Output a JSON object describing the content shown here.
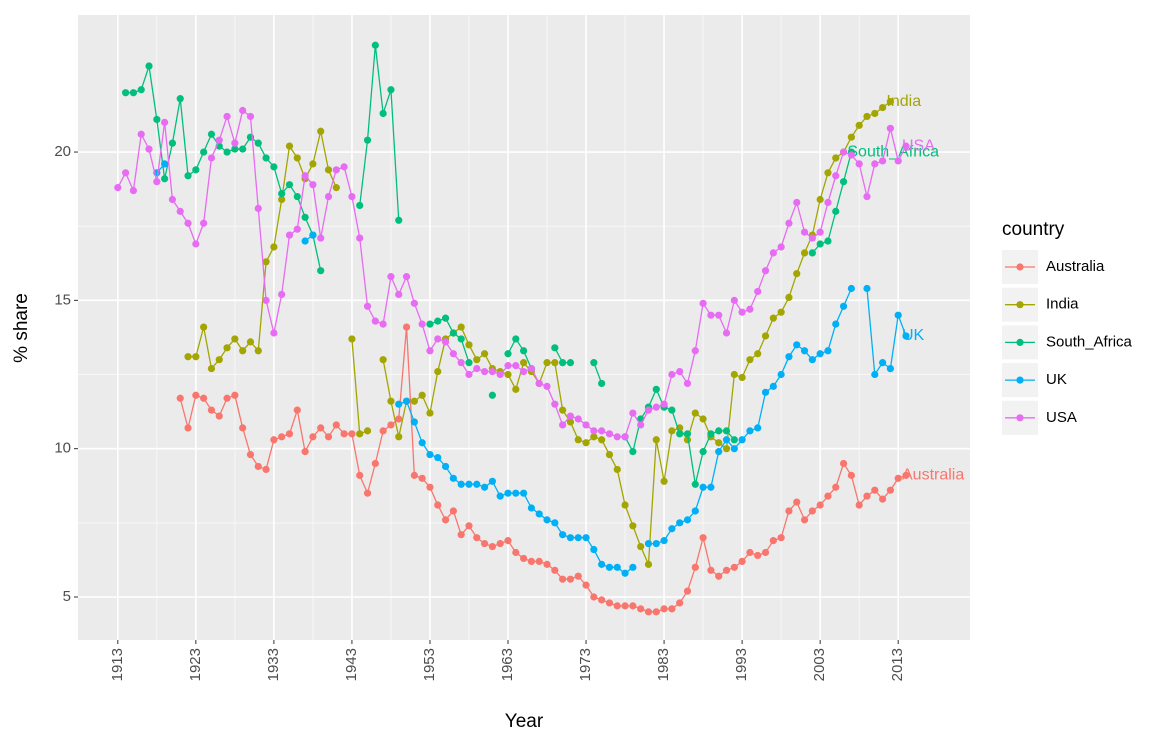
{
  "chart_data": {
    "type": "line",
    "x_label": "Year",
    "y_label": "% share",
    "legend_title": "country",
    "x": [
      1913,
      1914,
      1915,
      1916,
      1917,
      1918,
      1919,
      1920,
      1921,
      1922,
      1923,
      1924,
      1925,
      1926,
      1927,
      1928,
      1929,
      1930,
      1931,
      1932,
      1933,
      1934,
      1935,
      1936,
      1937,
      1938,
      1939,
      1940,
      1941,
      1942,
      1943,
      1944,
      1945,
      1946,
      1947,
      1948,
      1949,
      1950,
      1951,
      1952,
      1953,
      1954,
      1955,
      1956,
      1957,
      1958,
      1959,
      1960,
      1961,
      1962,
      1963,
      1964,
      1965,
      1966,
      1967,
      1968,
      1969,
      1970,
      1971,
      1972,
      1973,
      1974,
      1975,
      1976,
      1977,
      1978,
      1979,
      1980,
      1981,
      1982,
      1983,
      1984,
      1985,
      1986,
      1987,
      1988,
      1989,
      1990,
      1991,
      1992,
      1993,
      1994,
      1995,
      1996,
      1997,
      1998,
      1999,
      2000,
      2001,
      2002,
      2003,
      2004,
      2005,
      2006,
      2007,
      2008,
      2009,
      2010,
      2011,
      2012,
      2013,
      2014
    ],
    "xlim": [
      1907.9,
      2022.2
    ],
    "xticks": [
      1913,
      1923,
      1933,
      1943,
      1953,
      1963,
      1973,
      1983,
      1993,
      2003,
      2013
    ],
    "ylim": [
      3.55,
      24.62
    ],
    "yticks": [
      5,
      10,
      15,
      20
    ],
    "grid": true,
    "legend": "right",
    "series": [
      {
        "name": "Australia",
        "color": "#F8766D",
        "values": [
          null,
          null,
          null,
          null,
          null,
          null,
          null,
          null,
          11.7,
          10.7,
          11.8,
          11.7,
          11.3,
          11.1,
          11.7,
          11.8,
          10.7,
          9.8,
          9.4,
          9.3,
          10.3,
          10.4,
          10.5,
          11.3,
          9.9,
          10.4,
          10.7,
          10.4,
          10.8,
          10.5,
          10.5,
          9.1,
          8.5,
          9.5,
          10.6,
          10.8,
          11.0,
          14.1,
          9.1,
          9.0,
          8.7,
          8.1,
          7.6,
          7.9,
          7.1,
          7.4,
          7.0,
          6.8,
          6.7,
          6.8,
          6.9,
          6.5,
          6.3,
          6.2,
          6.2,
          6.1,
          5.9,
          5.6,
          5.6,
          5.7,
          5.4,
          5.0,
          4.9,
          4.8,
          4.7,
          4.7,
          4.7,
          4.6,
          4.5,
          4.5,
          4.6,
          4.6,
          4.8,
          5.2,
          6.0,
          7.0,
          5.9,
          5.7,
          5.9,
          6.0,
          6.2,
          6.5,
          6.4,
          6.5,
          6.9,
          7.0,
          7.9,
          8.2,
          7.6,
          7.9,
          8.1,
          8.4,
          8.7,
          9.5,
          9.1,
          8.1,
          8.4,
          8.6,
          8.3,
          8.6,
          9.0,
          9.1
        ]
      },
      {
        "name": "India",
        "color": "#A3A500",
        "values": [
          null,
          null,
          null,
          null,
          null,
          null,
          null,
          null,
          null,
          13.1,
          13.1,
          14.1,
          12.7,
          13.0,
          13.4,
          13.7,
          13.3,
          13.6,
          13.3,
          16.3,
          16.8,
          18.4,
          20.2,
          19.8,
          19.1,
          19.6,
          20.7,
          19.4,
          18.8,
          null,
          13.7,
          10.5,
          10.6,
          null,
          13.0,
          11.6,
          10.4,
          11.6,
          11.6,
          11.8,
          11.2,
          12.6,
          13.7,
          13.9,
          14.1,
          13.5,
          13.0,
          13.2,
          12.7,
          12.6,
          12.5,
          12.0,
          12.9,
          12.6,
          12.2,
          12.9,
          12.9,
          11.3,
          10.9,
          10.3,
          10.2,
          10.4,
          10.3,
          9.8,
          9.3,
          8.1,
          7.4,
          6.7,
          6.1,
          10.3,
          8.9,
          10.6,
          10.7,
          10.3,
          11.2,
          11.0,
          10.4,
          10.2,
          10.0,
          12.5,
          12.4,
          13.0,
          13.2,
          13.8,
          14.4,
          14.6,
          15.1,
          15.9,
          16.6,
          17.2,
          18.4,
          19.3,
          19.8,
          20.0,
          20.5,
          20.9,
          21.2,
          21.3,
          21.5,
          21.7,
          null,
          null
        ]
      },
      {
        "name": "South_Africa",
        "color": "#00BF7D",
        "values": [
          null,
          22.0,
          22.0,
          22.1,
          22.9,
          21.1,
          19.1,
          20.3,
          21.8,
          19.2,
          19.4,
          20.0,
          20.6,
          20.2,
          20.0,
          20.1,
          20.1,
          20.5,
          20.3,
          19.8,
          19.5,
          18.6,
          18.9,
          18.5,
          17.8,
          17.2,
          16.0,
          null,
          null,
          null,
          null,
          18.2,
          20.4,
          23.6,
          21.3,
          22.1,
          17.7,
          null,
          null,
          null,
          14.2,
          14.3,
          14.4,
          13.9,
          13.7,
          12.9,
          null,
          null,
          11.8,
          null,
          13.2,
          13.7,
          13.3,
          12.7,
          null,
          null,
          13.4,
          12.9,
          12.9,
          null,
          null,
          12.9,
          12.2,
          null,
          null,
          10.4,
          9.9,
          11.0,
          11.4,
          12.0,
          11.4,
          11.3,
          10.5,
          10.5,
          8.8,
          9.9,
          10.5,
          10.6,
          10.6,
          10.3,
          null,
          null,
          null,
          null,
          null,
          null,
          null,
          null,
          null,
          16.6,
          16.9,
          17.0,
          18.0,
          19.0,
          20.0,
          null,
          null,
          null,
          null,
          null,
          null,
          null
        ]
      },
      {
        "name": "UK",
        "color": "#00B0F6",
        "values": [
          null,
          null,
          null,
          null,
          null,
          19.3,
          19.6,
          null,
          null,
          null,
          null,
          null,
          null,
          null,
          null,
          null,
          null,
          null,
          null,
          null,
          null,
          null,
          null,
          null,
          17.0,
          17.2,
          null,
          null,
          null,
          null,
          null,
          null,
          null,
          null,
          null,
          null,
          11.5,
          11.6,
          10.9,
          10.2,
          9.8,
          9.7,
          9.4,
          9.0,
          8.8,
          8.8,
          8.8,
          8.7,
          8.9,
          8.4,
          8.5,
          8.5,
          8.5,
          8.0,
          7.8,
          7.6,
          7.5,
          7.1,
          7.0,
          7.0,
          7.0,
          6.6,
          6.1,
          6.0,
          6.0,
          5.8,
          6.0,
          null,
          6.8,
          6.8,
          6.9,
          7.3,
          7.5,
          7.6,
          7.9,
          8.7,
          8.7,
          9.9,
          10.3,
          10.0,
          10.3,
          10.6,
          10.7,
          11.9,
          12.1,
          12.5,
          13.1,
          13.5,
          13.3,
          13.0,
          13.2,
          13.3,
          14.2,
          14.8,
          15.4,
          null,
          15.4,
          12.5,
          12.9,
          12.7,
          14.5,
          13.8
        ]
      },
      {
        "name": "USA",
        "color": "#E76BF3",
        "values": [
          18.8,
          19.3,
          18.7,
          20.6,
          20.1,
          19.0,
          21.0,
          18.4,
          18.0,
          17.6,
          16.9,
          17.6,
          19.8,
          20.4,
          21.2,
          20.3,
          21.4,
          21.2,
          18.1,
          15.0,
          13.9,
          15.2,
          17.2,
          17.4,
          19.2,
          18.9,
          17.1,
          18.5,
          19.4,
          19.5,
          18.5,
          17.1,
          14.8,
          14.3,
          14.2,
          15.8,
          15.2,
          15.8,
          14.9,
          14.2,
          13.3,
          13.7,
          13.6,
          13.2,
          12.9,
          12.5,
          12.7,
          12.6,
          12.6,
          12.5,
          12.8,
          12.8,
          12.6,
          12.7,
          12.2,
          12.1,
          11.5,
          10.8,
          11.1,
          11.0,
          10.8,
          10.6,
          10.6,
          10.5,
          10.4,
          10.4,
          11.2,
          10.8,
          11.3,
          11.4,
          11.5,
          12.5,
          12.6,
          12.2,
          13.3,
          14.9,
          14.5,
          14.5,
          13.9,
          15.0,
          14.6,
          14.7,
          15.3,
          16.0,
          16.6,
          16.8,
          17.6,
          18.3,
          17.3,
          17.1,
          17.3,
          18.3,
          19.2,
          20.0,
          19.9,
          19.6,
          18.5,
          19.6,
          19.7,
          20.8,
          19.7,
          20.2
        ]
      }
    ]
  }
}
